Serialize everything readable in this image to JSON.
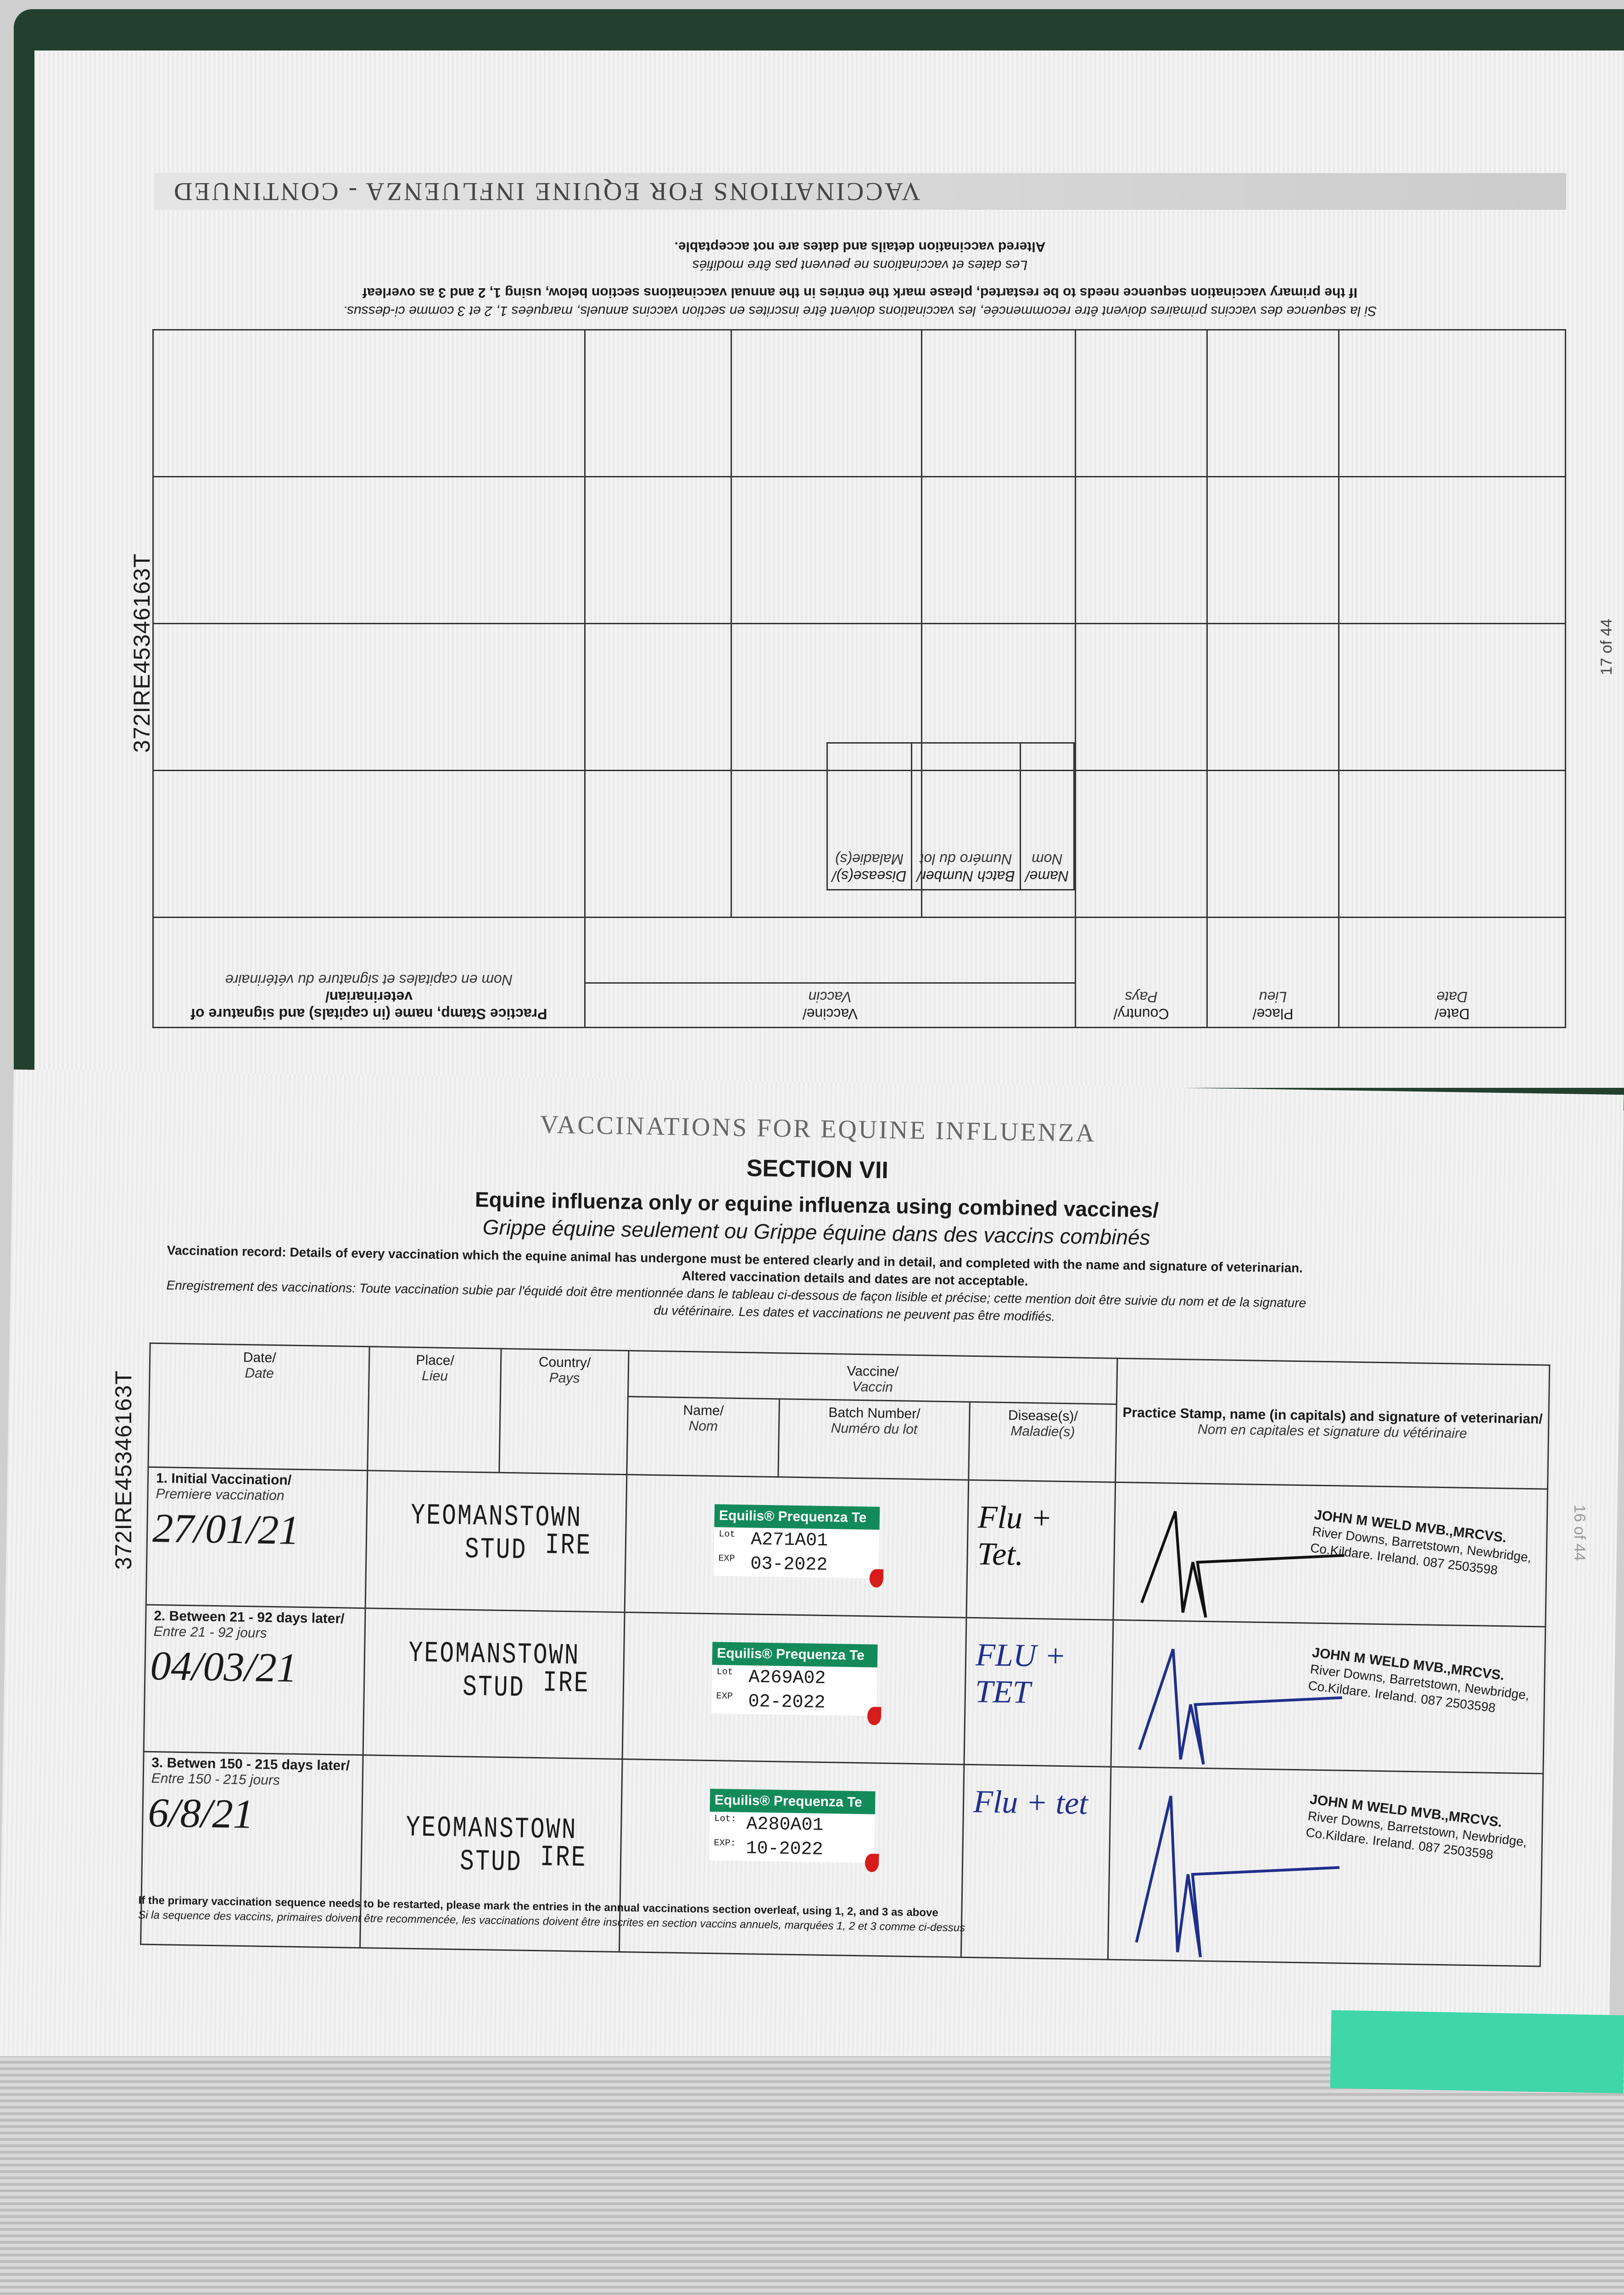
{
  "document_id": "372IRE45346163T",
  "upper_page": {
    "page_number": "17 of 44",
    "title": "VACCINATIONS FOR EQUINE INFLUENZA - CONTINUED",
    "notes": [
      "Altered vaccination details and dates are not acceptable.",
      "Les dates et vaccinations ne peuvent pas être modifiés",
      "If the primary vaccination sequence needs to be restarted, please mark the entries in the annual vaccinations section below, using 1, 2 and 3 as overleaf",
      "Si la sequence des vaccins primaires doivent être recommencée, les vaccinations doivent être inscrites en section vaccins annuels, marquées 1, 2 et 3 comme ci-dessus."
    ],
    "headers": {
      "date": "Date/",
      "date_fr": "Date",
      "place": "Place/",
      "place_fr": "Lieu",
      "country": "Country/",
      "country_fr": "Pays",
      "vaccine": "Vaccine/",
      "vaccine_fr": "Vaccin",
      "name": "Name/",
      "name_fr": "Nom",
      "batch": "Batch Number/",
      "batch_fr": "Numéro du lot",
      "disease": "Disease(s)/",
      "disease_fr": "Maladie(s)",
      "stamp": "Practice Stamp, name (in capitals) and signature of veterinarian/",
      "stamp_fr": "Nom en capitales et signature du vétérinaire"
    }
  },
  "lower_page": {
    "page_number": "16 of 44",
    "running_title": "VACCINATIONS FOR EQUINE INFLUENZA",
    "section": "SECTION VII",
    "heading": "Equine influenza only or equine influenza using combined vaccines/",
    "heading_fr": "Grippe équine seulement ou Grippe équine dans des vaccins combinés",
    "instructions": "Vaccination record: Details of every vaccination which the equine animal has undergone must be entered clearly and in detail, and completed with the name and signature of veterinarian.",
    "instructions2": "Altered vaccination details and dates are not acceptable.",
    "instructions_fr": "Enregistrement des vaccinations: Toute vaccination subie par l'équidé doit être mentionnée dans le tableau ci-dessous de façon lisible et précise; cette mention doit être suivie du nom et de la signature",
    "instructions_fr2": "du vétérinaire. Les dates et vaccinations ne peuvent pas être modifiés.",
    "headers": {
      "date": "Date/",
      "date_fr": "Date",
      "place": "Place/",
      "place_fr": "Lieu",
      "country": "Country/",
      "country_fr": "Pays",
      "vaccine": "Vaccine/",
      "vaccine_fr": "Vaccin",
      "name": "Name/",
      "name_fr": "Nom",
      "batch": "Batch Number/",
      "batch_fr": "Numéro du lot",
      "disease": "Disease(s)/",
      "disease_fr": "Maladie(s)",
      "stamp": "Practice Stamp, name (in capitals) and signature of veterinarian/",
      "stamp_fr": "Nom en capitales et signature du vétérinaire"
    },
    "rows": [
      {
        "label": "1. Initial Vaccination/",
        "label_fr": "Premiere vaccination",
        "date": "27/01/21",
        "place1": "YEOMANSTOWN",
        "place2": "STUD",
        "country": "IRE",
        "vaccine": "Equilis® Prequenza Te",
        "lot_label": "Lot",
        "exp_label": "EXP",
        "lot": "A271A01",
        "exp": "03-2022",
        "disease": "Flu + Tet.",
        "vet": "JOHN M WELD MVB.,MRCVS.",
        "addr1": "River Downs, Barretstown, Newbridge,",
        "addr2": "Co.Kildare. Ireland. 087 2503598",
        "ink": "#111111"
      },
      {
        "label": "2. Between 21 - 92 days later/",
        "label_fr": "Entre 21 - 92 jours",
        "date": "04/03/21",
        "place1": "YEOMANSTOWN",
        "place2": "STUD",
        "country": "IRE",
        "vaccine": "Equilis® Prequenza Te",
        "lot_label": "Lot",
        "exp_label": "EXP",
        "lot": "A269A02",
        "exp": "02-2022",
        "disease": "FLU + TET",
        "vet": "JOHN M WELD MVB.,MRCVS.",
        "addr1": "River Downs, Barretstown, Newbridge,",
        "addr2": "Co.Kildare. Ireland. 087 2503598",
        "ink": "#1f2f8a"
      },
      {
        "label": "3. Betwen 150 - 215 days later/",
        "label_fr": "Entre 150 - 215 jours",
        "date": "6/8/21",
        "place1": "YEOMANSTOWN",
        "place2": "STUD",
        "country": "IRE",
        "vaccine": "Equilis® Prequenza Te",
        "lot_label": "Lot:",
        "exp_label": "EXP:",
        "lot": "A280A01",
        "exp": "10-2022",
        "disease": "Flu + tet",
        "vet": "JOHN M WELD MVB.,MRCVS.",
        "addr1": "River Downs, Barretstown, Newbridge,",
        "addr2": "Co.Kildare. Ireland. 087 2503598",
        "ink": "#1f2f8a"
      }
    ],
    "footnote": "If the primary vaccination sequence needs to be restarted, please mark the entries in the annual vaccinations section overleaf, using 1, 2, and 3 as above",
    "footnote_fr": "Si la sequence des vaccins, primaires doivent être recommencée, les vaccinations doivent être inscrites en section vaccins annuels, marquées 1, 2 et 3 comme ci-dessus"
  },
  "colors": {
    "label_green": "#138a5a",
    "tab_teal": "#3fd6a8",
    "cover_green": "#23402f"
  }
}
